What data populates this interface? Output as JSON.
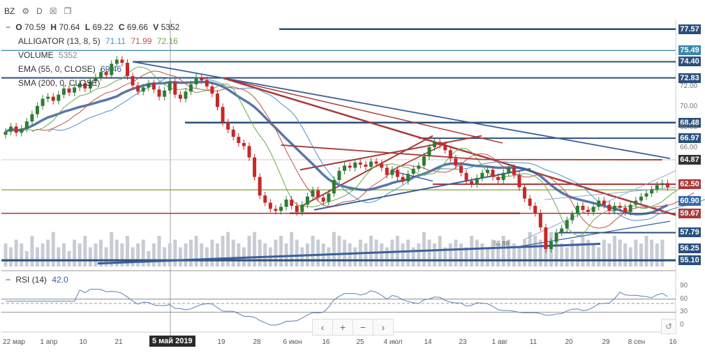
{
  "header": {
    "symbol": "BZ",
    "interval_label": "D"
  },
  "ohlcv": {
    "o_label": "O",
    "o": "70.59",
    "h_label": "H",
    "h": "70.64",
    "l_label": "L",
    "l": "69.22",
    "c_label": "C",
    "c": "69.66",
    "v_label": "V",
    "v": "5352"
  },
  "indicators": {
    "alligator": {
      "label": "ALLIGATOR (13, 8, 5)",
      "v1": "71.11",
      "v2": "71.99",
      "v3": "72.16"
    },
    "volume": {
      "label": "VOLUME",
      "value": "5352"
    },
    "ema": {
      "label": "EMA (55, 0, CLOSE)",
      "value": "69.46"
    },
    "sma": {
      "label": "SMA (200, 0, CLOSE)"
    },
    "rsi": {
      "label": "RSI (14)",
      "value": "42.0"
    }
  },
  "colors": {
    "bull": "#2e7d32",
    "bear": "#c62828",
    "line_blue": "#3b5f9a",
    "line_red": "#a83a3a",
    "jaw": "#4a90c4",
    "teeth": "#c0504d",
    "lips": "#6aa84f",
    "rsi_line": "#5b7fb5",
    "volume": "#c8ccd4"
  },
  "price_labels": [
    {
      "text": "77.57",
      "color": "#2c4f7c"
    },
    {
      "text": "75.49",
      "color": "#3a86a8"
    },
    {
      "text": "74.40",
      "color": "#2c4f7c"
    },
    {
      "text": "72.83",
      "color": "#2c4f7c"
    },
    {
      "text": "68.48",
      "color": "#2c4f7c"
    },
    {
      "text": "66.97",
      "color": "#2c4f7c"
    },
    {
      "text": "64.87",
      "color": "#333333"
    },
    {
      "text": "62.50",
      "color": "#a83a3a"
    },
    {
      "text": "60.90",
      "color": "#3a6aa8"
    },
    {
      "text": "59.67",
      "color": "#a83a3a"
    },
    {
      "text": "57.79",
      "color": "#2c4f7c"
    },
    {
      "text": "56.25",
      "color": "#2c4f7c"
    },
    {
      "text": "55.10",
      "color": "#2c4f7c"
    }
  ],
  "y_ticks": [
    "72.00",
    "70.00",
    "68.00",
    "66.00"
  ],
  "rsi_ticks": [
    "90",
    "60",
    "30",
    "0"
  ],
  "x_ticks": [
    "22 мар",
    "1 апр",
    "10",
    "21",
    "19",
    "28",
    "6 июн",
    "16",
    "25",
    "4 июл",
    "14",
    "23",
    "1 авг",
    "11",
    "20",
    "29",
    "8 сен",
    "16"
  ],
  "x_cursor_label": "5 май 2019",
  "annotation": "55.88",
  "nav": {
    "left": "‹",
    "plus": "+",
    "minus": "−",
    "right": "›",
    "reset": "↺"
  },
  "chart_data": {
    "type": "candlestick",
    "ylim": [
      54.5,
      78.5
    ],
    "rsi_ylim": [
      0,
      100
    ],
    "rsi_levels": [
      30,
      50,
      60
    ],
    "closes": [
      67.6,
      68.1,
      67.5,
      67.9,
      68.6,
      69.3,
      70.1,
      70.8,
      71.0,
      70.6,
      71.2,
      71.8,
      71.4,
      71.9,
      72.3,
      71.8,
      72.5,
      72.9,
      73.4,
      73.1,
      74.2,
      74.6,
      74.3,
      73.0,
      72.1,
      71.5,
      71.9,
      72.3,
      71.7,
      71.0,
      71.6,
      72.4,
      71.2,
      70.8,
      71.5,
      72.2,
      72.9,
      72.6,
      72.0,
      71.3,
      70.0,
      68.5,
      67.8,
      67.1,
      66.5,
      66.2,
      65.1,
      63.2,
      61.4,
      60.7,
      60.1,
      59.9,
      60.3,
      61.0,
      60.4,
      59.8,
      60.5,
      61.3,
      61.9,
      61.2,
      60.8,
      61.6,
      62.9,
      63.8,
      64.3,
      64.1,
      64.6,
      64.4,
      64.2,
      64.7,
      64.5,
      64.1,
      63.4,
      63.9,
      63.2,
      62.8,
      63.5,
      64.0,
      64.3,
      65.2,
      66.1,
      66.6,
      66.3,
      65.8,
      65.0,
      64.3,
      63.6,
      62.8,
      62.5,
      63.1,
      63.6,
      63.9,
      63.2,
      62.9,
      63.6,
      64.1,
      63.4,
      62.2,
      61.1,
      60.4,
      59.7,
      58.3,
      56.2,
      56.9,
      57.8,
      58.2,
      59.0,
      59.6,
      60.4,
      60.0,
      59.8,
      60.3,
      60.9,
      60.5,
      59.9,
      60.4,
      60.2,
      59.8,
      60.5,
      60.9,
      61.3,
      61.6,
      62.0,
      62.4,
      62.6,
      62.2
    ],
    "volume": [
      0.6,
      0.5,
      0.7,
      0.6,
      0.4,
      0.8,
      0.5,
      0.6,
      0.7,
      0.9,
      0.5,
      0.6,
      0.4,
      0.7,
      0.6,
      0.8,
      0.5,
      0.6,
      0.7,
      0.5,
      0.9,
      0.7,
      0.6,
      0.8,
      0.5,
      0.6,
      0.7,
      0.4,
      0.6,
      0.8,
      0.5,
      0.6,
      0.7,
      0.5,
      0.6,
      0.7,
      0.8,
      0.6,
      0.5,
      0.7,
      0.6,
      0.8,
      0.9,
      0.7,
      0.6,
      0.5,
      0.8,
      0.9,
      0.7,
      0.6,
      0.5,
      0.7,
      0.8,
      0.6,
      0.9,
      0.7,
      0.5,
      0.6,
      0.8,
      0.7,
      0.6,
      0.5,
      0.9,
      0.8,
      0.7,
      0.6,
      0.5,
      0.7,
      0.6,
      0.8,
      0.7,
      0.6,
      0.5,
      0.7,
      0.8,
      0.6,
      0.7,
      0.5,
      0.6,
      0.9,
      0.7,
      0.6,
      0.8,
      0.5,
      0.6,
      0.7,
      0.6,
      0.5,
      0.8,
      0.7,
      0.6,
      0.5,
      0.7,
      0.6,
      0.8,
      0.7,
      0.6,
      0.5,
      0.7,
      0.9,
      0.8,
      0.7,
      0.6,
      0.9,
      0.7,
      0.6,
      0.5,
      0.7,
      0.6,
      0.8,
      0.7,
      0.6,
      0.5,
      0.7,
      0.6,
      0.8,
      0.7,
      0.6,
      0.5,
      0.7,
      0.6,
      0.8,
      0.7,
      0.6,
      0.7
    ]
  }
}
